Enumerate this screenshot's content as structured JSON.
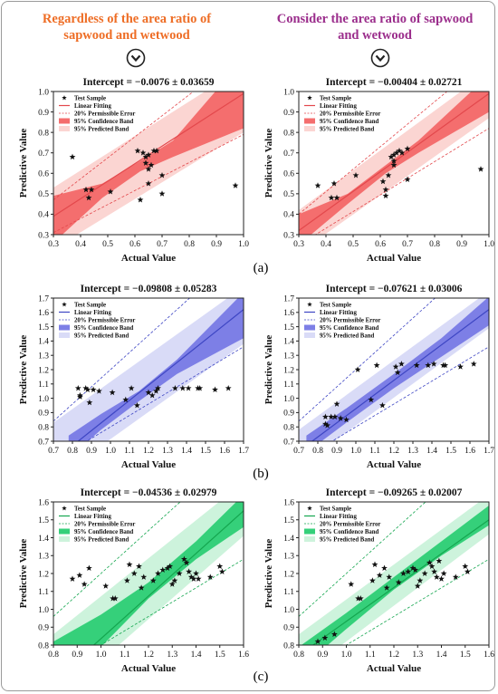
{
  "headers": {
    "left": "Regardless of the area ratio of sapwood and wetwood",
    "right": "Consider the area ratio of sapwood and wetwood"
  },
  "colors": {
    "left_header": "#ee6d25",
    "right_header": "#9b2e8c",
    "red_line": "#e3484c",
    "red_conf": "#f46e6e",
    "red_pred": "#fbd5d2",
    "blue_line": "#3e46c4",
    "blue_conf": "#7d7fe6",
    "blue_pred": "#d9dbf7",
    "green_line": "#14a64f",
    "green_conf": "#35d07a",
    "green_pred": "#cdf3dc"
  },
  "icons": [
    "chevron-down-circle-icon"
  ],
  "row_labels": [
    "(a)",
    "(b)",
    "(c)"
  ],
  "chart_data": [
    {
      "type": "scatter",
      "panel": "a-left",
      "theme": "red",
      "title": "Intercept = −0.0076 ± 0.03659",
      "xlabel": "Actual Value",
      "ylabel": "Predictive Value",
      "xlim": [
        0.3,
        1.0
      ],
      "ylim": [
        0.3,
        1.0
      ],
      "xticks": [
        "0.3",
        "0.4",
        "0.5",
        "0.6",
        "0.7",
        "0.8",
        "0.9",
        "1.0"
      ],
      "yticks": [
        "0.3",
        "0.4",
        "0.5",
        "0.6",
        "0.7",
        "0.8",
        "0.9",
        "1.0"
      ],
      "legend": [
        "Test Sample",
        "Linear Fitting",
        "20% Permissible Error",
        "95% Confidence Band",
        "95% Predicted Band"
      ],
      "fit": [
        [
          0.3,
          0.39
        ],
        [
          1.0,
          0.99
        ]
      ],
      "conf_band": {
        "x": [
          0.3,
          0.48,
          0.62,
          0.74,
          1.0
        ],
        "lo": [
          0.26,
          0.48,
          0.61,
          0.68,
          0.82
        ],
        "hi": [
          0.49,
          0.55,
          0.66,
          0.76,
          1.16
        ]
      },
      "pred_band": {
        "x": [
          0.3,
          1.0
        ],
        "lo": [
          0.23,
          0.8
        ],
        "hi": [
          0.53,
          1.12
        ]
      },
      "error_lines": {
        "x": [
          0.3,
          1.0
        ],
        "lower": [
          0.31,
          0.79
        ],
        "upper": [
          0.47,
          1.19
        ]
      },
      "points": [
        [
          0.37,
          0.68
        ],
        [
          0.42,
          0.52
        ],
        [
          0.43,
          0.48
        ],
        [
          0.44,
          0.52
        ],
        [
          0.51,
          0.51
        ],
        [
          0.61,
          0.71
        ],
        [
          0.62,
          0.47
        ],
        [
          0.63,
          0.7
        ],
        [
          0.64,
          0.65
        ],
        [
          0.64,
          0.68
        ],
        [
          0.65,
          0.69
        ],
        [
          0.65,
          0.55
        ],
        [
          0.65,
          0.62
        ],
        [
          0.66,
          0.64
        ],
        [
          0.67,
          0.71
        ],
        [
          0.68,
          0.71
        ],
        [
          0.7,
          0.59
        ],
        [
          0.7,
          0.5
        ],
        [
          0.97,
          0.54
        ]
      ]
    },
    {
      "type": "scatter",
      "panel": "a-right",
      "theme": "red",
      "title": "Intercept = −0.00404 ± 0.02721",
      "xlabel": "Actual Value",
      "ylabel": "Predictive Value",
      "xlim": [
        0.3,
        1.0
      ],
      "ylim": [
        0.3,
        1.0
      ],
      "xticks": [
        "0.3",
        "0.4",
        "0.5",
        "0.6",
        "0.7",
        "0.8",
        "0.9",
        "1.0"
      ],
      "yticks": [
        "0.3",
        "0.4",
        "0.5",
        "0.6",
        "0.7",
        "0.8",
        "0.9",
        "1.0"
      ],
      "legend": [
        "Test Sample",
        "Linear Fitting",
        "20% Permissible Error",
        "95% Confidence Band",
        "95% Predicted Band"
      ],
      "fit": [
        [
          0.3,
          0.32
        ],
        [
          1.0,
          0.99
        ]
      ],
      "conf_band": {
        "x": [
          0.3,
          0.48,
          0.62,
          0.74,
          1.0
        ],
        "lo": [
          0.25,
          0.45,
          0.6,
          0.7,
          0.9
        ],
        "hi": [
          0.4,
          0.5,
          0.64,
          0.76,
          1.08
        ]
      },
      "pred_band": {
        "x": [
          0.3,
          1.0
        ],
        "lo": [
          0.21,
          0.87
        ],
        "hi": [
          0.42,
          1.1
        ]
      },
      "error_lines": {
        "x": [
          0.3,
          1.0
        ],
        "lower": [
          0.25,
          0.82
        ],
        "upper": [
          0.4,
          1.17
        ]
      },
      "points": [
        [
          0.37,
          0.54
        ],
        [
          0.42,
          0.48
        ],
        [
          0.43,
          0.55
        ],
        [
          0.44,
          0.48
        ],
        [
          0.51,
          0.59
        ],
        [
          0.61,
          0.56
        ],
        [
          0.62,
          0.49
        ],
        [
          0.62,
          0.52
        ],
        [
          0.63,
          0.59
        ],
        [
          0.64,
          0.68
        ],
        [
          0.65,
          0.69
        ],
        [
          0.65,
          0.64
        ],
        [
          0.65,
          0.66
        ],
        [
          0.66,
          0.7
        ],
        [
          0.67,
          0.71
        ],
        [
          0.68,
          0.7
        ],
        [
          0.7,
          0.72
        ],
        [
          0.7,
          0.57
        ],
        [
          0.97,
          0.62
        ]
      ]
    },
    {
      "type": "scatter",
      "panel": "b-left",
      "theme": "blue",
      "title": "Intercept = −0.09808 ± 0.05283",
      "xlabel": "Actual Value",
      "ylabel": "Predictive Value",
      "xlim": [
        0.7,
        1.7
      ],
      "ylim": [
        0.7,
        1.7
      ],
      "xticks": [
        "0.7",
        "0.8",
        "0.9",
        "1.0",
        "1.1",
        "1.2",
        "1.3",
        "1.4",
        "1.5",
        "1.6",
        "1.7"
      ],
      "yticks": [
        "0.7",
        "0.8",
        "0.9",
        "1.0",
        "1.1",
        "1.2",
        "1.3",
        "1.4",
        "1.5",
        "1.6",
        "1.7"
      ],
      "legend": [
        "Test Sample",
        "Linear Fitting",
        "20% Permissible Error",
        "95% Confidence Band",
        "95% Predicted Band"
      ],
      "fit": [
        [
          0.83,
          0.7
        ],
        [
          1.7,
          1.62
        ]
      ],
      "conf_band": {
        "x": [
          0.78,
          0.95,
          1.15,
          1.35,
          1.7
        ],
        "lo": [
          0.58,
          0.78,
          0.98,
          1.17,
          1.42
        ],
        "hi": [
          0.74,
          0.89,
          1.05,
          1.27,
          1.74
        ]
      },
      "pred_band": {
        "x": [
          0.7,
          1.7
        ],
        "lo": [
          0.43,
          1.38
        ],
        "hi": [
          0.83,
          1.78
        ]
      },
      "error_lines": {
        "x": [
          0.7,
          1.7
        ],
        "lower": [
          0.56,
          1.36
        ],
        "upper": [
          0.84,
          2.04
        ]
      },
      "points": [
        [
          0.83,
          1.07
        ],
        [
          0.84,
          1.02
        ],
        [
          0.84,
          1.01
        ],
        [
          0.87,
          1.07
        ],
        [
          0.88,
          1.06
        ],
        [
          0.89,
          0.97
        ],
        [
          0.91,
          1.06
        ],
        [
          0.94,
          1.05
        ],
        [
          1.01,
          1.04
        ],
        [
          1.08,
          0.99
        ],
        [
          1.11,
          1.07
        ],
        [
          1.14,
          0.95
        ],
        [
          1.2,
          1.04
        ],
        [
          1.22,
          1.02
        ],
        [
          1.24,
          1.05
        ],
        [
          1.25,
          1.07
        ],
        [
          1.34,
          1.07
        ],
        [
          1.38,
          1.07
        ],
        [
          1.41,
          1.07
        ],
        [
          1.46,
          1.07
        ],
        [
          1.47,
          1.07
        ],
        [
          1.55,
          1.06
        ],
        [
          1.62,
          1.07
        ]
      ]
    },
    {
      "type": "scatter",
      "panel": "b-right",
      "theme": "blue",
      "title": "Intercept = −0.07621 ± 0.03006",
      "xlabel": "Actual Value",
      "ylabel": "Predictive Value",
      "xlim": [
        0.7,
        1.7
      ],
      "ylim": [
        0.7,
        1.7
      ],
      "xticks": [
        "0.7",
        "0.8",
        "0.9",
        "1.0",
        "1.1",
        "1.2",
        "1.3",
        "1.4",
        "1.5",
        "1.6",
        "1.7"
      ],
      "yticks": [
        "0.7",
        "0.8",
        "0.9",
        "1.0",
        "1.1",
        "1.2",
        "1.3",
        "1.4",
        "1.5",
        "1.6",
        "1.7"
      ],
      "legend": [
        "Test Sample",
        "Linear Fitting",
        "20% Permissible Error",
        "95% Confidence Band",
        "95% Predicted Band"
      ],
      "fit": [
        [
          0.77,
          0.7
        ],
        [
          1.7,
          1.62
        ]
      ],
      "conf_band": {
        "x": [
          0.74,
          0.95,
          1.2,
          1.45,
          1.7
        ],
        "lo": [
          0.62,
          0.83,
          1.07,
          1.29,
          1.51
        ],
        "hi": [
          0.74,
          0.93,
          1.17,
          1.42,
          1.71
        ]
      },
      "pred_band": {
        "x": [
          0.7,
          1.7
        ],
        "lo": [
          0.52,
          1.49
        ],
        "hi": [
          0.78,
          1.75
        ]
      },
      "error_lines": {
        "x": [
          0.7,
          1.7
        ],
        "lower": [
          0.56,
          1.36
        ],
        "upper": [
          0.84,
          2.04
        ]
      },
      "points": [
        [
          0.84,
          0.87
        ],
        [
          0.84,
          0.82
        ],
        [
          0.85,
          0.81
        ],
        [
          0.87,
          0.87
        ],
        [
          0.89,
          0.87
        ],
        [
          0.9,
          0.96
        ],
        [
          0.92,
          0.86
        ],
        [
          0.95,
          0.85
        ],
        [
          1.01,
          1.2
        ],
        [
          1.08,
          0.99
        ],
        [
          1.11,
          1.23
        ],
        [
          1.14,
          0.95
        ],
        [
          1.21,
          1.22
        ],
        [
          1.22,
          1.18
        ],
        [
          1.24,
          1.24
        ],
        [
          1.32,
          1.23
        ],
        [
          1.38,
          1.23
        ],
        [
          1.41,
          1.24
        ],
        [
          1.46,
          1.23
        ],
        [
          1.47,
          1.23
        ],
        [
          1.55,
          1.22
        ],
        [
          1.62,
          1.24
        ]
      ]
    },
    {
      "type": "scatter",
      "panel": "c-left",
      "theme": "green",
      "title": "Intercept = −0.04536 ± 0.02979",
      "xlabel": "Actual Value",
      "ylabel": "Predictive Value",
      "xlim": [
        0.8,
        1.6
      ],
      "ylim": [
        0.8,
        1.6
      ],
      "xticks": [
        "0.8",
        "0.9",
        "1.0",
        "1.1",
        "1.2",
        "1.3",
        "1.4",
        "1.5",
        "1.6"
      ],
      "yticks": [
        "0.8",
        "0.9",
        "1.0",
        "1.1",
        "1.2",
        "1.3",
        "1.4",
        "1.5",
        "1.6"
      ],
      "legend": [
        "Test Sample",
        "Linear Fitting",
        "20% Permissible Error",
        "95% Confidence Band",
        "95% Predicted Band"
      ],
      "fit": [
        [
          0.97,
          0.8
        ],
        [
          1.6,
          1.55
        ]
      ],
      "conf_band": {
        "x": [
          0.8,
          1.0,
          1.2,
          1.4,
          1.6
        ],
        "lo": [
          0.52,
          0.79,
          1.06,
          1.28,
          1.46
        ],
        "hi": [
          0.82,
          0.97,
          1.15,
          1.38,
          1.64
        ]
      },
      "pred_band": {
        "x": [
          0.8,
          1.6
        ],
        "lo": [
          0.48,
          1.41
        ],
        "hi": [
          0.86,
          1.71
        ]
      },
      "error_lines": {
        "x": [
          0.8,
          1.6
        ],
        "lower": [
          0.64,
          1.28
        ],
        "upper": [
          0.96,
          1.92
        ]
      },
      "points": [
        [
          0.88,
          1.17
        ],
        [
          0.91,
          1.19
        ],
        [
          0.93,
          1.14
        ],
        [
          0.95,
          1.23
        ],
        [
          1.02,
          1.13
        ],
        [
          1.05,
          1.06
        ],
        [
          1.06,
          1.06
        ],
        [
          1.11,
          1.16
        ],
        [
          1.12,
          1.25
        ],
        [
          1.14,
          1.2
        ],
        [
          1.16,
          1.24
        ],
        [
          1.17,
          1.12
        ],
        [
          1.18,
          1.18
        ],
        [
          1.22,
          1.16
        ],
        [
          1.24,
          1.2
        ],
        [
          1.26,
          1.22
        ],
        [
          1.28,
          1.23
        ],
        [
          1.29,
          1.24
        ],
        [
          1.3,
          1.14
        ],
        [
          1.31,
          1.16
        ],
        [
          1.33,
          1.2
        ],
        [
          1.35,
          1.28
        ],
        [
          1.36,
          1.26
        ],
        [
          1.37,
          1.21
        ],
        [
          1.38,
          1.18
        ],
        [
          1.39,
          1.17
        ],
        [
          1.4,
          1.2
        ],
        [
          1.41,
          1.17
        ],
        [
          1.46,
          1.18
        ],
        [
          1.5,
          1.24
        ],
        [
          1.51,
          1.21
        ]
      ]
    },
    {
      "type": "scatter",
      "panel": "c-right",
      "theme": "green",
      "title": "Intercept = −0.09265 ± 0.02007",
      "xlabel": "Actual Value",
      "ylabel": "Predictive Value",
      "xlim": [
        0.8,
        1.6
      ],
      "ylim": [
        0.8,
        1.6
      ],
      "xticks": [
        "0.8",
        "0.9",
        "1.0",
        "1.1",
        "1.2",
        "1.3",
        "1.4",
        "1.5",
        "1.6"
      ],
      "yticks": [
        "0.8",
        "0.9",
        "1.0",
        "1.1",
        "1.2",
        "1.3",
        "1.4",
        "1.5",
        "1.6"
      ],
      "legend": [
        "Test Sample",
        "Linear Fitting",
        "20% Permissible Error",
        "95% Confidence Band",
        "95% Predicted Band"
      ],
      "fit": [
        [
          0.86,
          0.8
        ],
        [
          1.6,
          1.5
        ]
      ],
      "conf_band": {
        "x": [
          0.8,
          1.0,
          1.2,
          1.4,
          1.6
        ],
        "lo": [
          0.66,
          0.89,
          1.11,
          1.3,
          1.47
        ],
        "hi": [
          0.79,
          0.98,
          1.18,
          1.38,
          1.58
        ]
      },
      "pred_band": {
        "x": [
          0.8,
          1.6
        ],
        "lo": [
          0.62,
          1.42
        ],
        "hi": [
          0.86,
          1.64
        ]
      },
      "error_lines": {
        "x": [
          0.8,
          1.6
        ],
        "lower": [
          0.64,
          1.28
        ],
        "upper": [
          0.96,
          1.92
        ]
      },
      "points": [
        [
          0.88,
          0.82
        ],
        [
          0.91,
          0.84
        ],
        [
          0.95,
          0.86
        ],
        [
          1.02,
          1.14
        ],
        [
          1.05,
          1.06
        ],
        [
          1.06,
          1.06
        ],
        [
          1.11,
          1.16
        ],
        [
          1.12,
          1.25
        ],
        [
          1.14,
          1.19
        ],
        [
          1.16,
          1.23
        ],
        [
          1.17,
          1.12
        ],
        [
          1.18,
          1.18
        ],
        [
          1.22,
          1.15
        ],
        [
          1.24,
          1.2
        ],
        [
          1.26,
          1.21
        ],
        [
          1.28,
          1.23
        ],
        [
          1.29,
          1.22
        ],
        [
          1.3,
          1.13
        ],
        [
          1.31,
          1.16
        ],
        [
          1.33,
          1.2
        ],
        [
          1.35,
          1.26
        ],
        [
          1.36,
          1.24
        ],
        [
          1.37,
          1.21
        ],
        [
          1.38,
          1.18
        ],
        [
          1.39,
          1.27
        ],
        [
          1.4,
          1.17
        ],
        [
          1.41,
          1.2
        ],
        [
          1.46,
          1.18
        ],
        [
          1.5,
          1.24
        ],
        [
          1.51,
          1.21
        ]
      ]
    }
  ]
}
